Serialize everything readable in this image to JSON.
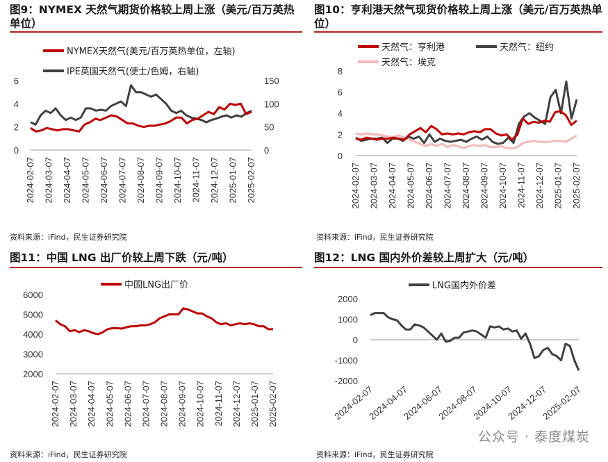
{
  "panels": [
    {
      "title": "图9：NYMEX 天然气期货价格较上周上涨（美元/百万英热单位）",
      "source": "资料来源：iFind，民生证券研究院"
    },
    {
      "title": "图10：亨利港天然气现货价格较上周上涨（美元/百万英热单位）",
      "source": "资料来源：iFind，民生证券研究院"
    },
    {
      "title": "图11：中国 LNG 出厂价较上周下跌（元/吨）",
      "source": "资料来源：iFind，民生证券研究院"
    },
    {
      "title": "图12：LNG 国内外价差较上周扩大（元/吨）",
      "source": "资料来源：iFind，民生证券研究院"
    }
  ],
  "watermark": "公众号 · 泰度煤炭",
  "colors": {
    "red": "#c00000",
    "gray": "#404040",
    "pink": "#f4b8b8",
    "rule": "#b22222"
  },
  "chart_data": [
    {
      "type": "line",
      "title": "图9：NYMEX 天然气期货价格较上周上涨（美元/百万英热单位）",
      "x_ticks": [
        "2024-02-07",
        "2024-03-07",
        "2024-04-07",
        "2024-05-07",
        "2024-06-07",
        "2024-07-07",
        "2024-08-07",
        "2024-09-07",
        "2024-10-07",
        "2024-11-07",
        "2024-12-07",
        "2025-01-07",
        "2025-02-07"
      ],
      "y_left": {
        "ticks": [
          "0",
          "2",
          "4",
          "6"
        ],
        "range": [
          0,
          6
        ]
      },
      "y_right": {
        "ticks": [
          "0",
          "50",
          "100",
          "150"
        ],
        "range": [
          0,
          150
        ]
      },
      "series": [
        {
          "name": "NYMEX天然气(美元/百万英热单位，左轴)",
          "axis": "left",
          "color": "#c00000",
          "values": [
            1.9,
            1.6,
            1.7,
            1.9,
            1.8,
            1.7,
            1.8,
            1.8,
            1.7,
            1.6,
            2.2,
            2.4,
            2.7,
            2.6,
            2.8,
            3.0,
            2.9,
            2.6,
            2.3,
            2.3,
            2.1,
            2.0,
            2.1,
            2.1,
            2.2,
            2.3,
            2.5,
            2.8,
            2.8,
            2.3,
            2.6,
            2.7,
            3.0,
            3.3,
            3.1,
            3.7,
            3.5,
            4.0,
            3.9,
            4.0,
            3.1,
            3.3
          ]
        },
        {
          "name": "IPE英国天然气(便士/色姆，右轴)",
          "axis": "right",
          "color": "#404040",
          "values": [
            60,
            55,
            75,
            85,
            80,
            90,
            75,
            65,
            70,
            65,
            70,
            90,
            90,
            85,
            87,
            85,
            95,
            100,
            105,
            95,
            140,
            125,
            125,
            120,
            115,
            120,
            110,
            100,
            85,
            80,
            85,
            75,
            70,
            68,
            65,
            60,
            65,
            68,
            72,
            75,
            70,
            75,
            72,
            80,
            85
          ]
        }
      ]
    },
    {
      "type": "line",
      "title": "图10：亨利港天然气现货价格较上周上涨（美元/百万英热单位）",
      "x_ticks": [
        "2024-02-07",
        "2024-03-07",
        "2024-04-07",
        "2024-05-07",
        "2024-06-07",
        "2024-07-07",
        "2024-08-07",
        "2024-09-07",
        "2024-10-07",
        "2024-11-07",
        "2024-12-07",
        "2025-01-07",
        "2025-02-07"
      ],
      "y_left": {
        "ticks": [
          "0",
          "2",
          "4",
          "6",
          "8"
        ],
        "range": [
          0,
          8
        ]
      },
      "series": [
        {
          "name": "天然气：亨利港",
          "color": "#c00000",
          "values": [
            1.6,
            1.5,
            1.7,
            1.6,
            1.5,
            1.6,
            1.6,
            1.7,
            1.6,
            1.5,
            2.0,
            2.3,
            2.6,
            2.2,
            2.8,
            2.5,
            2.0,
            2.1,
            2.0,
            2.1,
            2.0,
            2.2,
            2.3,
            2.2,
            2.5,
            2.5,
            2.1,
            1.9,
            2.0,
            1.5,
            2.0,
            3.5,
            3.0,
            3.2,
            3.1,
            3.3,
            3.2,
            4.1,
            4.2,
            3.8,
            2.9,
            3.3
          ]
        },
        {
          "name": "天然气：纽约",
          "color": "#404040",
          "values": [
            1.7,
            1.4,
            1.5,
            1.6,
            1.6,
            1.7,
            1.2,
            1.6,
            1.6,
            1.4,
            1.8,
            1.6,
            1.8,
            1.2,
            2.0,
            1.3,
            1.6,
            1.4,
            1.3,
            1.4,
            1.5,
            1.3,
            1.6,
            1.8,
            1.5,
            1.8,
            1.3,
            1.1,
            1.2,
            1.7,
            1.2,
            3.0,
            3.7,
            4.0,
            3.6,
            3.3,
            3.0,
            5.5,
            6.2,
            4.0,
            7.0,
            3.5,
            5.3
          ]
        },
        {
          "name": "天然气：埃克",
          "color": "#f4b8b8",
          "values": [
            2.1,
            2.0,
            2.1,
            2.0,
            2.0,
            1.9,
            1.8,
            1.8,
            1.9,
            1.7,
            1.5,
            1.3,
            1.1,
            0.9,
            1.1,
            0.9,
            1.1,
            0.8,
            1.0,
            0.9,
            0.7,
            0.9,
            1.0,
            0.9,
            1.0,
            0.8,
            0.8,
            0.9,
            0.7,
            0.7,
            0.8,
            1.2,
            1.3,
            1.4,
            1.3,
            1.3,
            1.3,
            1.4,
            1.4,
            1.3,
            1.6,
            1.9
          ]
        }
      ]
    },
    {
      "type": "line",
      "title": "图11：中国 LNG 出厂价较上周下跌（元/吨）",
      "x_ticks": [
        "2024-02-07",
        "2024-03-07",
        "2024-04-07",
        "2024-05-07",
        "2024-06-07",
        "2024-07-07",
        "2024-08-07",
        "2024-09-07",
        "2024-10-07",
        "2024-11-07",
        "2024-12-07",
        "2025-01-07",
        "2025-02-07"
      ],
      "y_left": {
        "ticks": [
          "2000",
          "3000",
          "4000",
          "5000",
          "6000"
        ],
        "range": [
          2000,
          6000
        ]
      },
      "series": [
        {
          "name": "中国LNG出厂价",
          "color": "#c00000",
          "values": [
            4700,
            4500,
            4400,
            4150,
            4200,
            4100,
            4200,
            4150,
            4050,
            4000,
            4100,
            4250,
            4300,
            4300,
            4280,
            4350,
            4400,
            4400,
            4450,
            4450,
            4500,
            4600,
            4800,
            4900,
            5000,
            5000,
            5000,
            5300,
            5250,
            5150,
            5050,
            5050,
            4900,
            4800,
            4600,
            4500,
            4550,
            4450,
            4500,
            4550,
            4500,
            4550,
            4500,
            4400,
            4400,
            4250,
            4250
          ]
        }
      ]
    },
    {
      "type": "line",
      "title": "图12：LNG 国内外价差较上周扩大（元/吨）",
      "x_ticks": [
        "2024-02-07",
        "2024-04-07",
        "2024-06-07",
        "2024-08-07",
        "2024-10-07",
        "2024-12-07",
        "2025-02-07"
      ],
      "y_left": {
        "ticks": [
          "-2000",
          "-1000",
          "0",
          "1000",
          "2000"
        ],
        "range": [
          -2000,
          2000
        ]
      },
      "series": [
        {
          "name": "LNG国内外价差",
          "color": "#404040",
          "values": [
            1200,
            1300,
            1300,
            1300,
            1100,
            1000,
            950,
            700,
            500,
            500,
            750,
            700,
            600,
            400,
            200,
            0,
            300,
            -100,
            -50,
            100,
            100,
            350,
            400,
            450,
            400,
            250,
            100,
            650,
            600,
            650,
            500,
            550,
            400,
            450,
            50,
            300,
            -200,
            -900,
            -800,
            -500,
            -400,
            -700,
            -800,
            -1000,
            -200,
            -300,
            -1000,
            -1500
          ]
        }
      ]
    }
  ]
}
